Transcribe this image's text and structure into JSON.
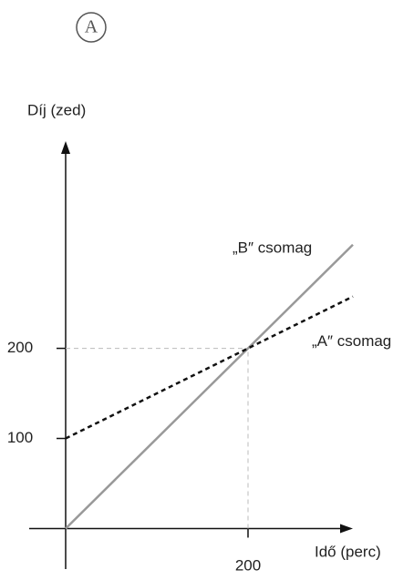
{
  "chart_data": {
    "type": "line",
    "badge": "A",
    "ylabel": "Díj (zed)",
    "xlabel": "Idő (perc)",
    "x": [
      0,
      315
    ],
    "series": [
      {
        "name": "„B″ csomag",
        "color": "#999999",
        "values": [
          0,
          315
        ]
      },
      {
        "name": "„A″ csomag",
        "color": "#111111",
        "values": [
          100,
          257.5
        ],
        "dashed": true
      }
    ],
    "xlim": [
      -40,
      315
    ],
    "ylim": [
      -45,
      430
    ],
    "xticks": [
      200
    ],
    "yticks": [
      100,
      200
    ]
  }
}
